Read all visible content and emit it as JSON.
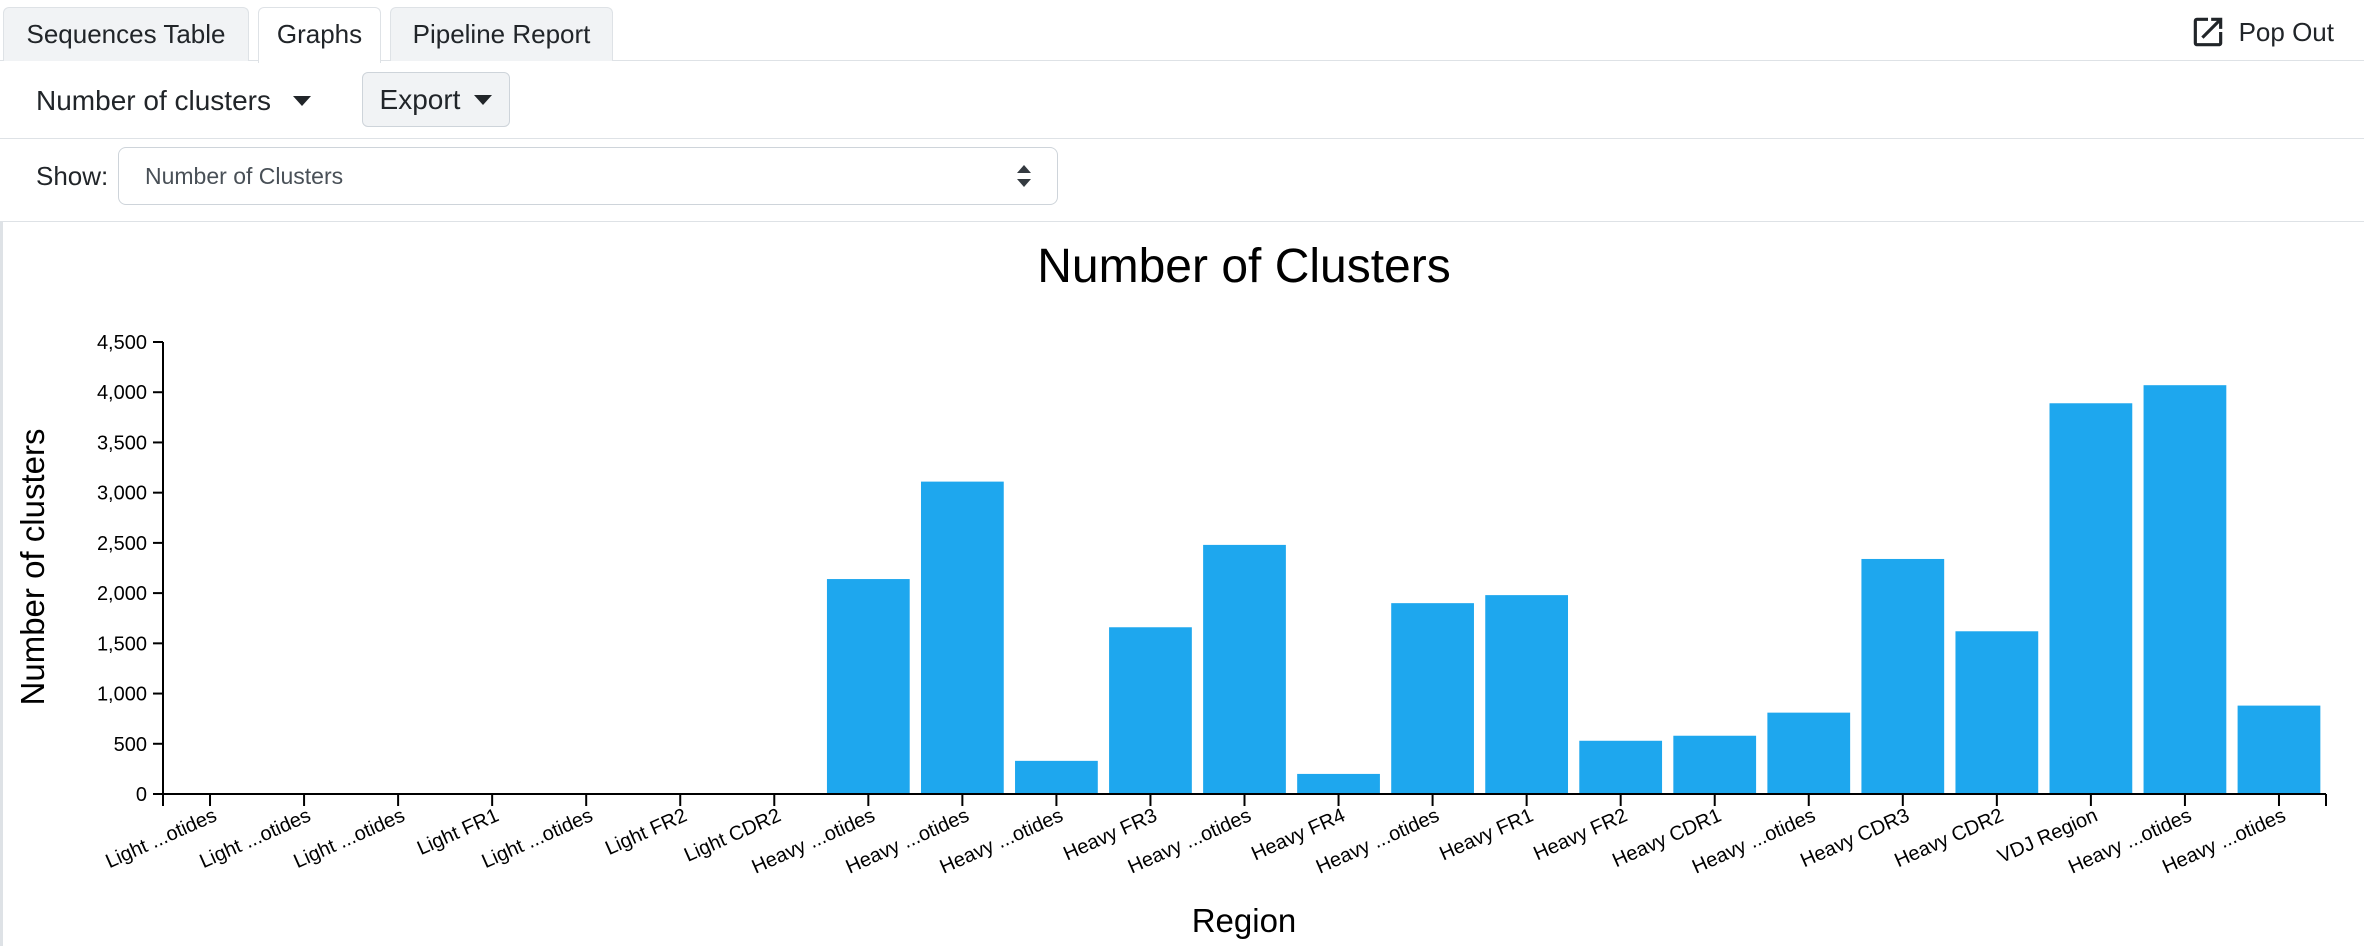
{
  "tabs": [
    {
      "label": "Sequences Table",
      "active": false
    },
    {
      "label": "Graphs",
      "active": true
    },
    {
      "label": "Pipeline Report",
      "active": false
    }
  ],
  "popout": {
    "label": "Pop Out",
    "icon": "external-link-icon"
  },
  "toolbar": {
    "metric_label": "Number of clusters",
    "export_label": "Export"
  },
  "show": {
    "label": "Show:",
    "value": "Number of Clusters"
  },
  "colors": {
    "bar": "#1ea7ee",
    "text": "#212529",
    "border": "#dee2e6"
  },
  "chart_data": {
    "type": "bar",
    "title": "Number of Clusters",
    "xlabel": "Region",
    "ylabel": "Number of clusters",
    "ylim": [
      0,
      4500
    ],
    "yticks": [
      0,
      500,
      1000,
      1500,
      2000,
      2500,
      3000,
      3500,
      4000,
      4500
    ],
    "ytick_labels": [
      "0",
      "500",
      "1,000",
      "1,500",
      "2,000",
      "2,500",
      "3,000",
      "3,500",
      "4,000",
      "4,500"
    ],
    "categories": [
      "Light ...otides",
      "Light ...otides",
      "Light ...otides",
      "Light FR1",
      "Light ...otides",
      "Light FR2",
      "Light CDR2",
      "Heavy ...otides",
      "Heavy ...otides",
      "Heavy ...otides",
      "Heavy FR3",
      "Heavy ...otides",
      "Heavy FR4",
      "Heavy ...otides",
      "Heavy FR1",
      "Heavy FR2",
      "Heavy CDR1",
      "Heavy ...otides",
      "Heavy CDR3",
      "Heavy CDR2",
      "VDJ Region",
      "Heavy ...otides",
      "Heavy ...otides"
    ],
    "values": [
      0,
      0,
      0,
      0,
      0,
      0,
      0,
      2140,
      3110,
      330,
      1660,
      2480,
      200,
      1900,
      1980,
      530,
      580,
      810,
      2340,
      1620,
      3890,
      4070,
      880
    ],
    "grid": false,
    "legend": "none"
  }
}
